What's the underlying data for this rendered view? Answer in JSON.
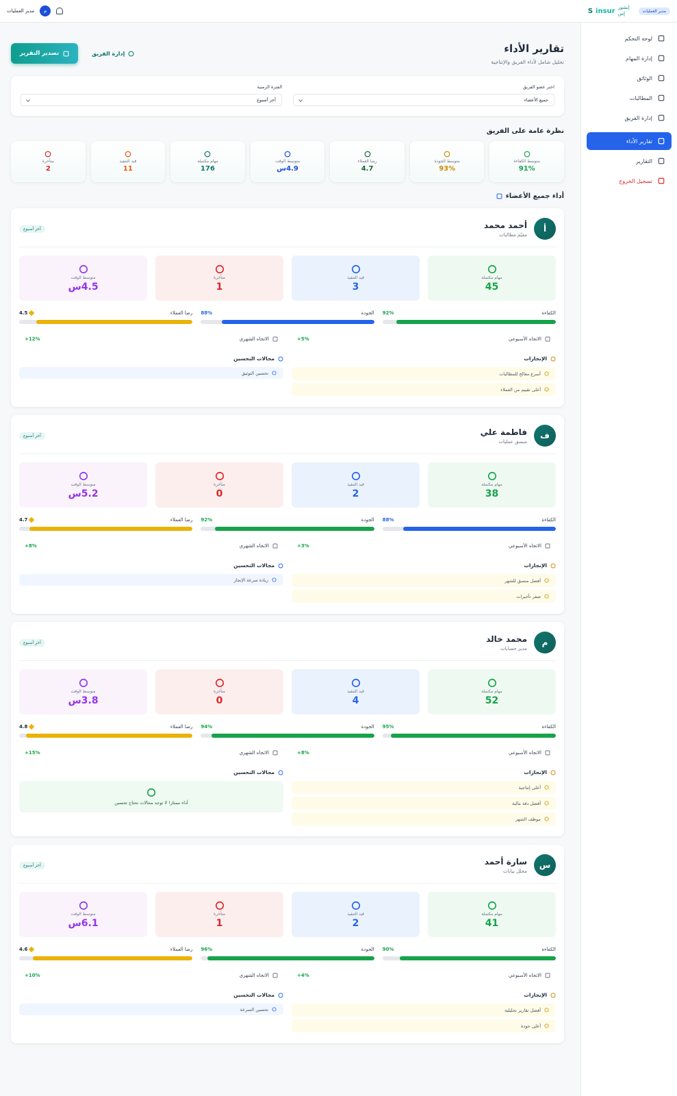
{
  "topbar": {
    "user_name": "مدير العمليات",
    "user_initial": "م",
    "role_badge": "مدير العمليات",
    "logo_ar": "إنشور إس",
    "logo_en": "insur",
    "logo_mark": "S"
  },
  "sidebar": {
    "items": [
      "لوحة التحكم",
      "إدارة المهام",
      "الوثائق",
      "المطالبات",
      "إدارة الفريق",
      "تقارير الأداء",
      "التقارير"
    ],
    "logout": "تسجيل الخروج"
  },
  "header": {
    "title": "تقارير الأداء",
    "subtitle": "تحليل شامل لأداء الفريق والإنتاجية",
    "export_button": "تصدير التقرير",
    "team_button": "إدارة الفريق"
  },
  "filters": {
    "member_label": "اختر عضو الفريق",
    "member_value": "جميع الأعضاء",
    "period_label": "الفترة الزمنية",
    "period_value": "آخر أسبوع"
  },
  "overview": {
    "title": "نظرة عامة على الفريق",
    "cards": [
      {
        "label": "متوسط الكفاءة",
        "value": "91%"
      },
      {
        "label": "متوسط الجودة",
        "value": "93%"
      },
      {
        "label": "رضا العملاء",
        "value": "4.7"
      },
      {
        "label": "متوسط الوقت",
        "value": "4.9س"
      },
      {
        "label": "مهام مكتملة",
        "value": "176"
      },
      {
        "label": "قيد التنفيذ",
        "value": "11"
      },
      {
        "label": "متأخرة",
        "value": "2"
      }
    ]
  },
  "members_title": "أداء جميع الأعضاء",
  "labels": {
    "completed": "مهام مكتملة",
    "in_progress": "قيد التنفيذ",
    "overdue": "متأخرة",
    "avg_time": "متوسط الوقت",
    "efficiency": "الكفاءة",
    "quality": "الجودة",
    "satisfaction": "رضا العملاء",
    "weekly": "الاتجاه الأسبوعي",
    "monthly": "الاتجاه الشهري",
    "achievements": "الإنجازات",
    "improvements": "مجالات التحسين"
  },
  "members": [
    {
      "initial": "أ",
      "name": "أحمد محمد",
      "role": "مقيّم مطالبات",
      "period": "آخر أسبوع",
      "completed": 45,
      "in_progress": 3,
      "overdue": 1,
      "avg_time": "4.5س",
      "efficiency": {
        "value": 92,
        "label": "92%"
      },
      "quality": {
        "value": 88,
        "label": "88%"
      },
      "satisfaction": 4.5,
      "weekly_trend": "+5%",
      "monthly_trend": "+12%",
      "achievements": [
        "أسرع معالج للمطالبات",
        "أعلى تقييم من العملاء"
      ],
      "improvements": [
        "تحسين التوثيق"
      ]
    },
    {
      "initial": "ف",
      "name": "فاطمة علي",
      "role": "منسق عمليات",
      "period": "آخر أسبوع",
      "completed": 38,
      "in_progress": 2,
      "overdue": 0,
      "avg_time": "5.2س",
      "efficiency": {
        "value": 88,
        "label": "88%"
      },
      "quality": {
        "value": 92,
        "label": "92%"
      },
      "satisfaction": 4.7,
      "weekly_trend": "+3%",
      "monthly_trend": "+8%",
      "achievements": [
        "أفضل منسق للشهر",
        "صفر تأخيرات"
      ],
      "improvements": [
        "زيادة سرعة الإنجاز"
      ]
    },
    {
      "initial": "م",
      "name": "محمد خالد",
      "role": "مدير حسابات",
      "period": "آخر أسبوع",
      "completed": 52,
      "in_progress": 4,
      "overdue": 0,
      "avg_time": "3.8س",
      "efficiency": {
        "value": 95,
        "label": "95%"
      },
      "quality": {
        "value": 94,
        "label": "94%"
      },
      "satisfaction": 4.8,
      "weekly_trend": "+8%",
      "monthly_trend": "+15%",
      "achievements": [
        "أعلى إنتاجية",
        "أفضل دقة مالية",
        "موظف الشهر"
      ],
      "improvements_message": "أداء ممتاز! لا توجد مجالات تحتاج تحسين"
    },
    {
      "initial": "س",
      "name": "سارة أحمد",
      "role": "محلل بيانات",
      "period": "آخر أسبوع",
      "completed": 41,
      "in_progress": 2,
      "overdue": 1,
      "avg_time": "6.1س",
      "efficiency": {
        "value": 90,
        "label": "90%"
      },
      "quality": {
        "value": 96,
        "label": "96%"
      },
      "satisfaction": 4.6,
      "weekly_trend": "+4%",
      "monthly_trend": "+10%",
      "achievements": [
        "أفضل تقارير تحليلية",
        "أعلى جودة"
      ],
      "improvements": [
        "تحسين السرعة"
      ]
    }
  ]
}
